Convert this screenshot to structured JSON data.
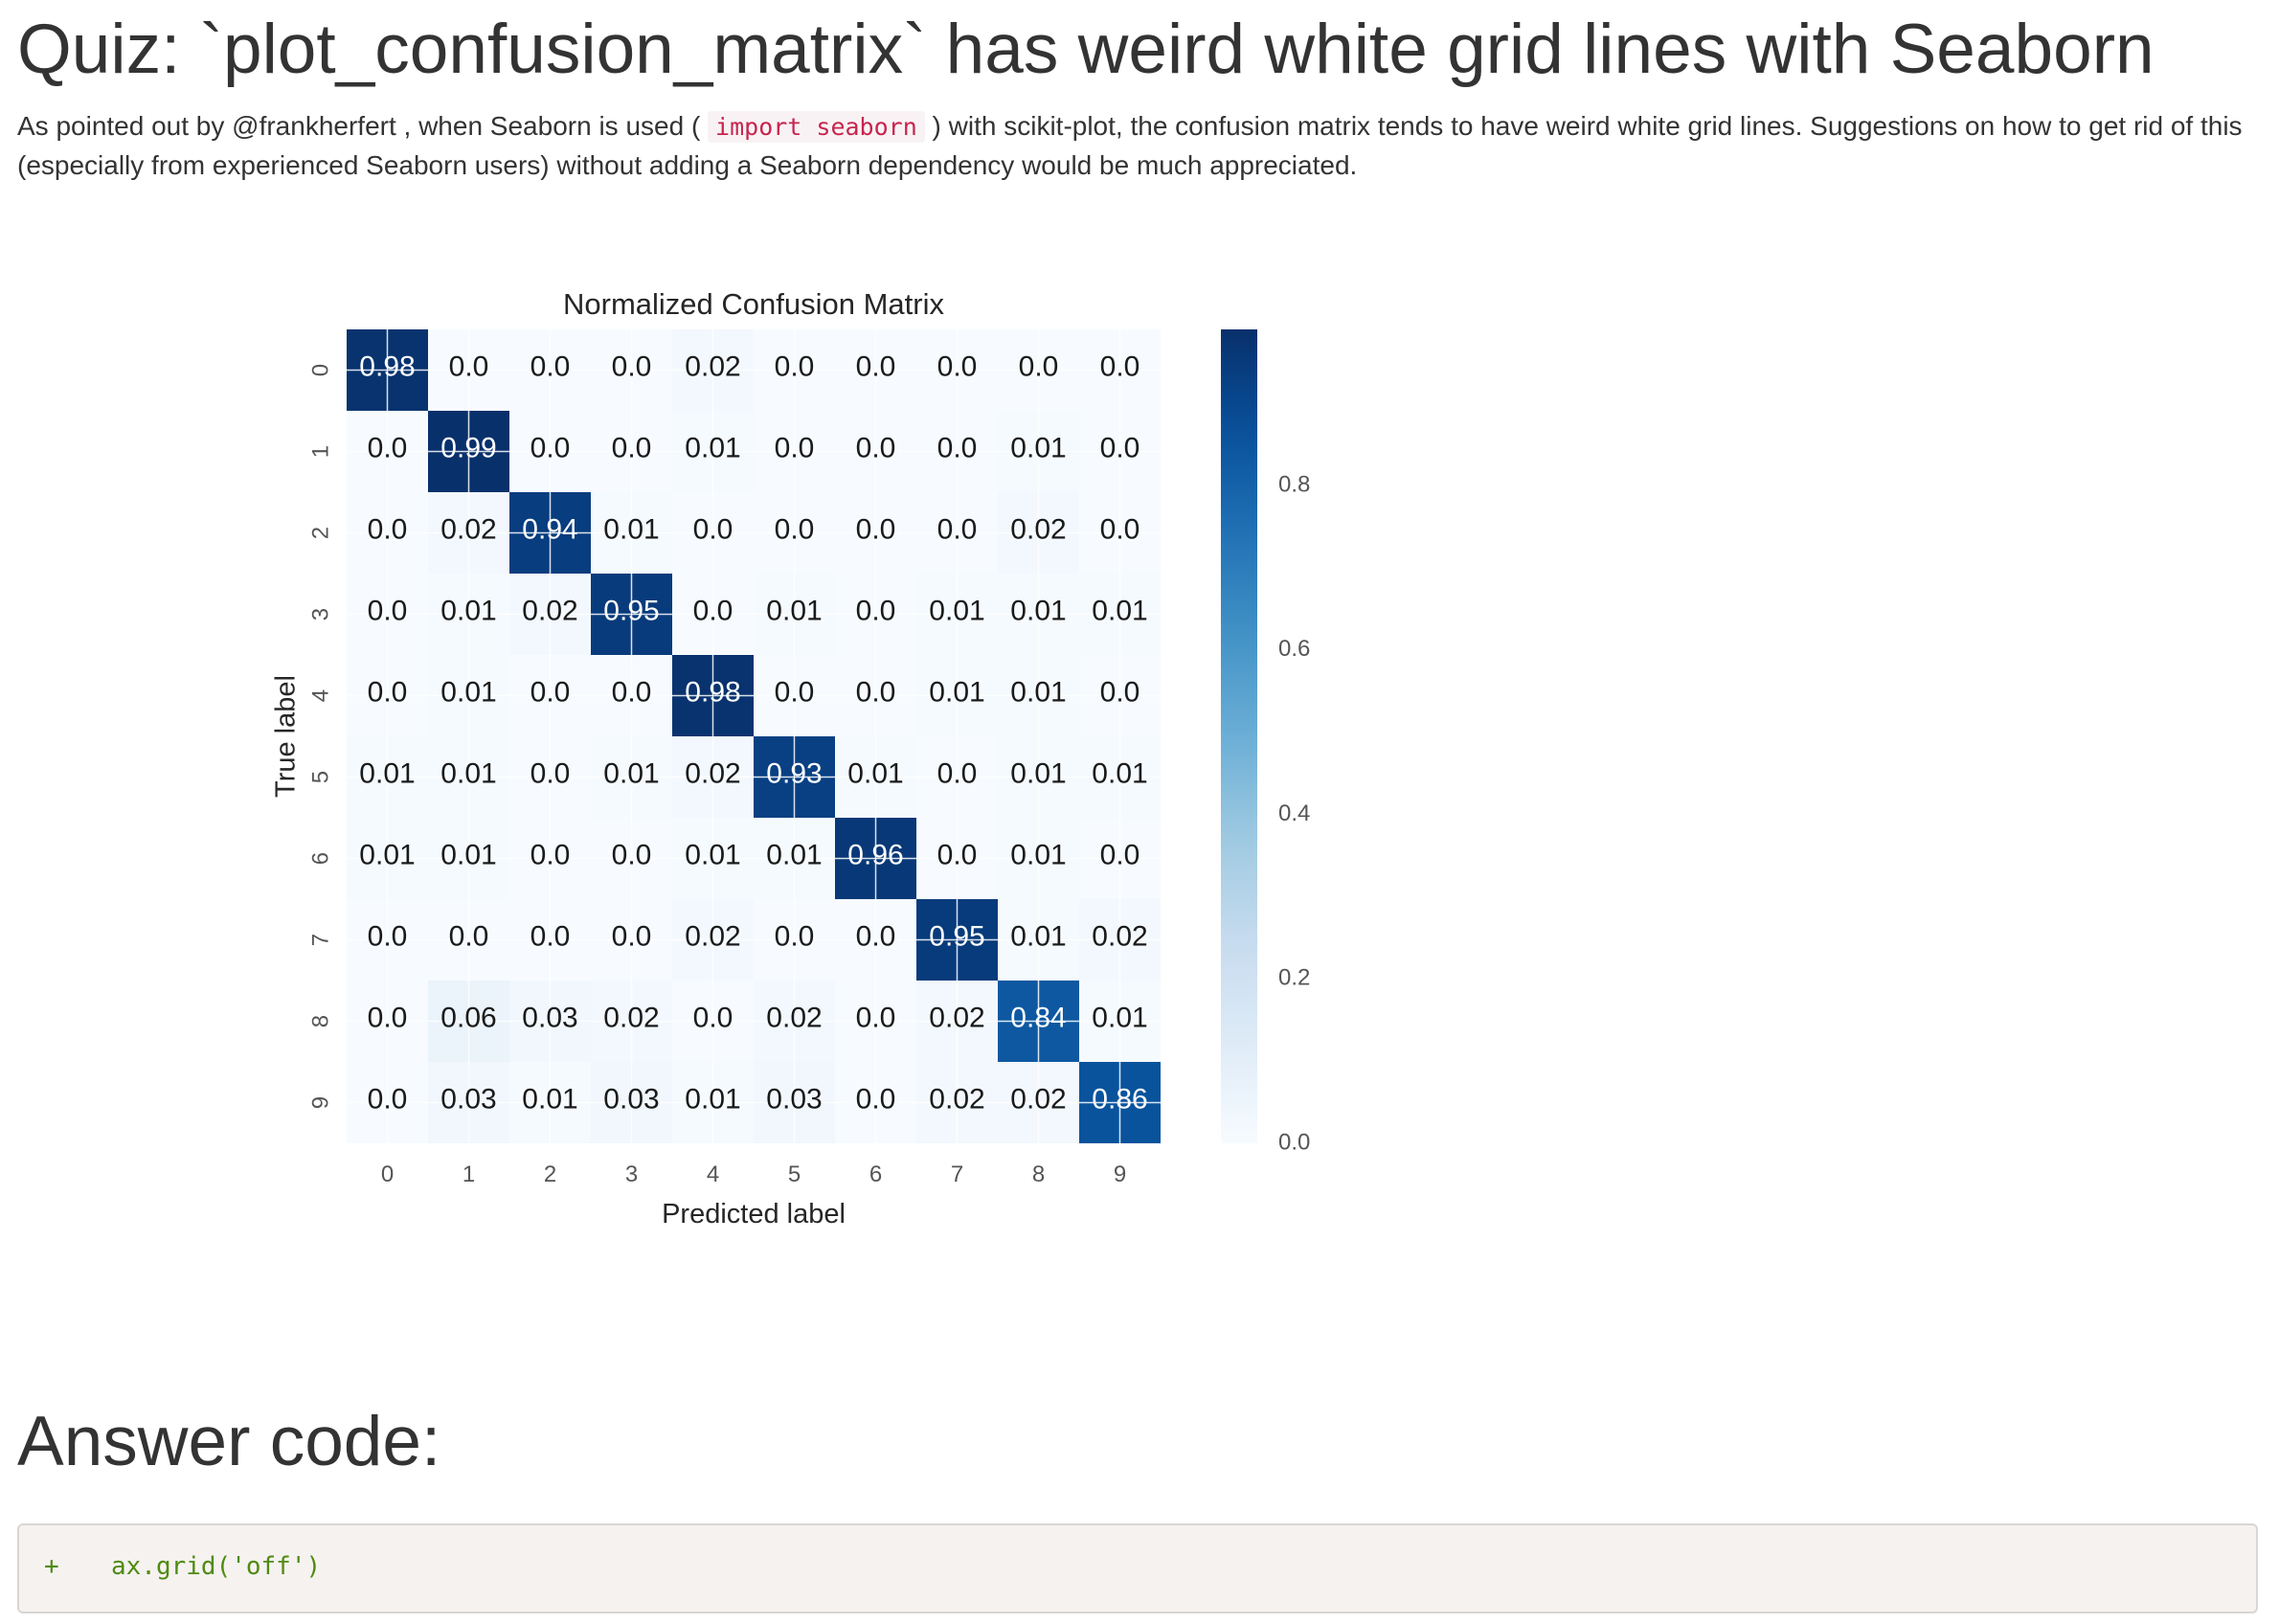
{
  "page": {
    "title": "Quiz: `plot_confusion_matrix` has weird white grid lines with Seaborn",
    "description_before": "As pointed out by @frankherfert , when Seaborn is used ( ",
    "description_code": "import seaborn",
    "description_after": " ) with scikit-plot, the confusion matrix tends to have weird white grid lines. Suggestions on how to get rid of this (especially from experienced Seaborn users) without adding a Seaborn dependency would be much appreciated.",
    "answer_heading": "Answer code:",
    "code": {
      "marker": "+",
      "line": "ax.grid('off')"
    }
  },
  "colors": {
    "text": "#333333",
    "inline_code": "#c7254e",
    "code_block_bg": "#f5f2f0",
    "code_text": "#4f8a10",
    "cmap": "Blues"
  },
  "chart_data": {
    "type": "heatmap",
    "title": "Normalized Confusion Matrix",
    "xlabel": "Predicted label",
    "ylabel": "True label",
    "x_ticks": [
      "0",
      "1",
      "2",
      "3",
      "4",
      "5",
      "6",
      "7",
      "8",
      "9"
    ],
    "y_ticks": [
      "0",
      "1",
      "2",
      "3",
      "4",
      "5",
      "6",
      "7",
      "8",
      "9"
    ],
    "matrix": [
      [
        0.98,
        0.0,
        0.0,
        0.0,
        0.02,
        0.0,
        0.0,
        0.0,
        0.0,
        0.0
      ],
      [
        0.0,
        0.99,
        0.0,
        0.0,
        0.01,
        0.0,
        0.0,
        0.0,
        0.01,
        0.0
      ],
      [
        0.0,
        0.02,
        0.94,
        0.01,
        0.0,
        0.0,
        0.0,
        0.0,
        0.02,
        0.0
      ],
      [
        0.0,
        0.01,
        0.02,
        0.95,
        0.0,
        0.01,
        0.0,
        0.01,
        0.01,
        0.01
      ],
      [
        0.0,
        0.01,
        0.0,
        0.0,
        0.98,
        0.0,
        0.0,
        0.01,
        0.01,
        0.0
      ],
      [
        0.01,
        0.01,
        0.0,
        0.01,
        0.02,
        0.93,
        0.01,
        0.0,
        0.01,
        0.01
      ],
      [
        0.01,
        0.01,
        0.0,
        0.0,
        0.01,
        0.01,
        0.96,
        0.0,
        0.01,
        0.0
      ],
      [
        0.0,
        0.0,
        0.0,
        0.0,
        0.02,
        0.0,
        0.0,
        0.95,
        0.01,
        0.02
      ],
      [
        0.0,
        0.06,
        0.03,
        0.02,
        0.0,
        0.02,
        0.0,
        0.02,
        0.84,
        0.01
      ],
      [
        0.0,
        0.03,
        0.01,
        0.03,
        0.01,
        0.03,
        0.0,
        0.02,
        0.02,
        0.86
      ]
    ],
    "colorbar": {
      "range": [
        0,
        0.99
      ],
      "ticks": [
        "0.0",
        "0.2",
        "0.4",
        "0.6",
        "0.8"
      ]
    },
    "grid": true
  }
}
